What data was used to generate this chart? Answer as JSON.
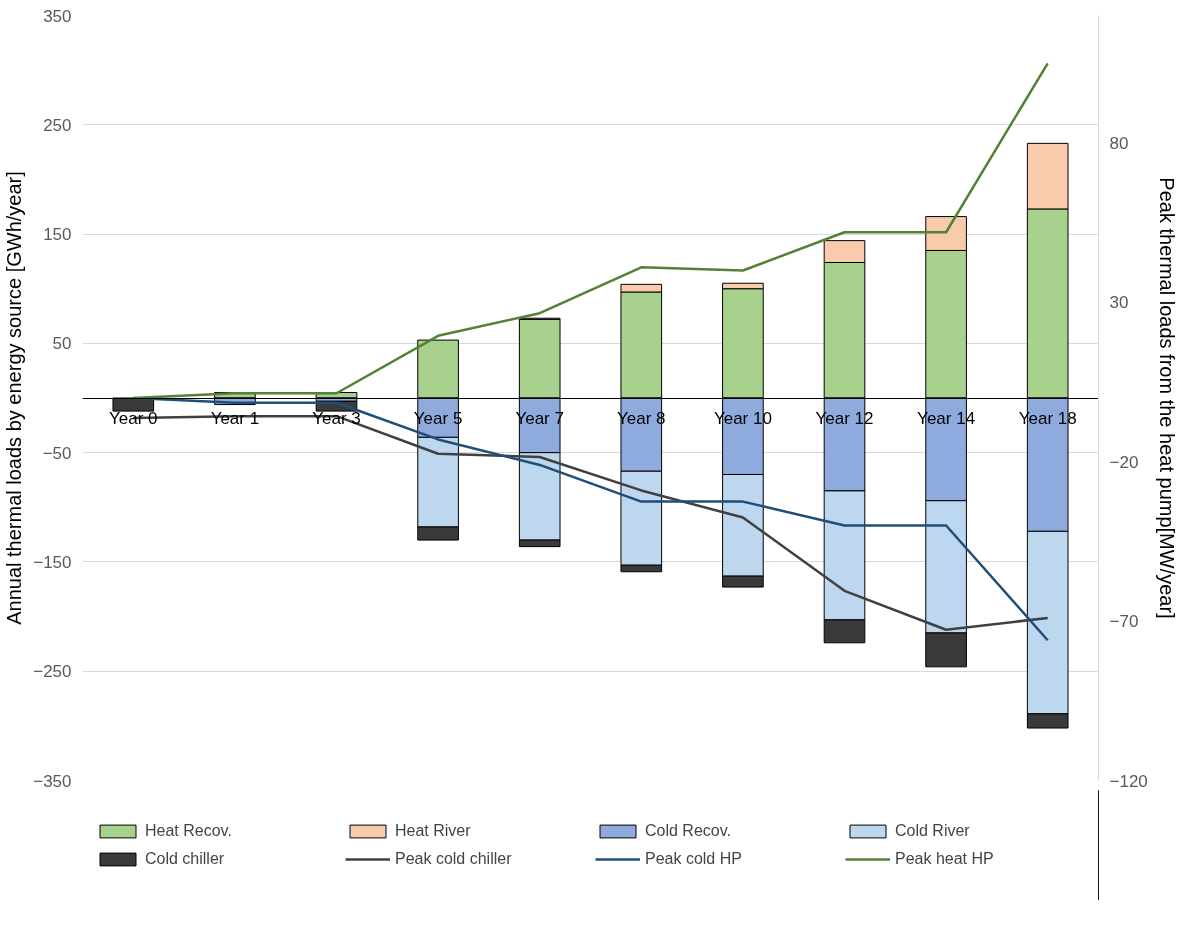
{
  "chart_data": {
    "type": "bar",
    "stacked": true,
    "categories": [
      "Year 0",
      "Year 1",
      "Year 3",
      "Year 5",
      "Year 7",
      "Year 8",
      "Year 10",
      "Year 12",
      "Year 14",
      "Year 18"
    ],
    "ylabel": "Annual thermal loads by energy source [GWh/year]",
    "y2label": "Peak thermal loads from the heat pump[MW/year]",
    "ylim": [
      -350,
      350
    ],
    "yticks": [
      -350,
      -250,
      -150,
      -50,
      50,
      150,
      250,
      350
    ],
    "y2lim": [
      -120,
      120
    ],
    "y2ticks": [
      -120,
      -70,
      -20,
      30,
      80
    ],
    "grid": "y",
    "legend": "bottom",
    "series": [
      {
        "name": "Heat Recov.",
        "color": "#a9d18e",
        "values": [
          0,
          5,
          5,
          53,
          72,
          97,
          100,
          124,
          135,
          173
        ]
      },
      {
        "name": "Heat River",
        "color": "#f8cbad",
        "values": [
          0,
          0,
          0,
          0,
          1,
          7,
          5,
          20,
          31,
          60
        ]
      },
      {
        "name": "Cold Recov.",
        "color": "#8faadc",
        "values": [
          0,
          -6,
          -3,
          -36,
          -50,
          -67,
          -70,
          -85,
          -94,
          -122
        ]
      },
      {
        "name": "Cold River",
        "color": "#bdd7ee",
        "values": [
          0,
          0,
          0,
          -82,
          -80,
          -86,
          -93,
          -118,
          -121,
          -167
        ]
      },
      {
        "name": "Cold chiller",
        "color": "#3a3a3a",
        "values": [
          -12,
          0,
          -9,
          -12,
          -6,
          -6,
          -10,
          -21,
          -31,
          -13
        ]
      },
      {
        "name": "Peak cold chiller",
        "type": "line",
        "axis": "y2",
        "color": "#404040",
        "values": [
          -6.3,
          -5.7,
          -5.7,
          -17.5,
          -18.5,
          -29,
          -37.5,
          -60.5,
          -72.7,
          -69
        ]
      },
      {
        "name": "Peak cold HP",
        "type": "line",
        "axis": "y2",
        "color": "#1f4e79",
        "values": [
          0,
          -1.5,
          -1.5,
          -13,
          -21,
          -32.5,
          -32.5,
          -40,
          -40,
          -76
        ]
      },
      {
        "name": "Peak heat HP",
        "type": "line",
        "axis": "y2",
        "color": "#548235",
        "values": [
          0,
          1.5,
          1.5,
          19.5,
          26.6,
          41,
          40,
          52,
          52,
          105
        ]
      }
    ]
  }
}
